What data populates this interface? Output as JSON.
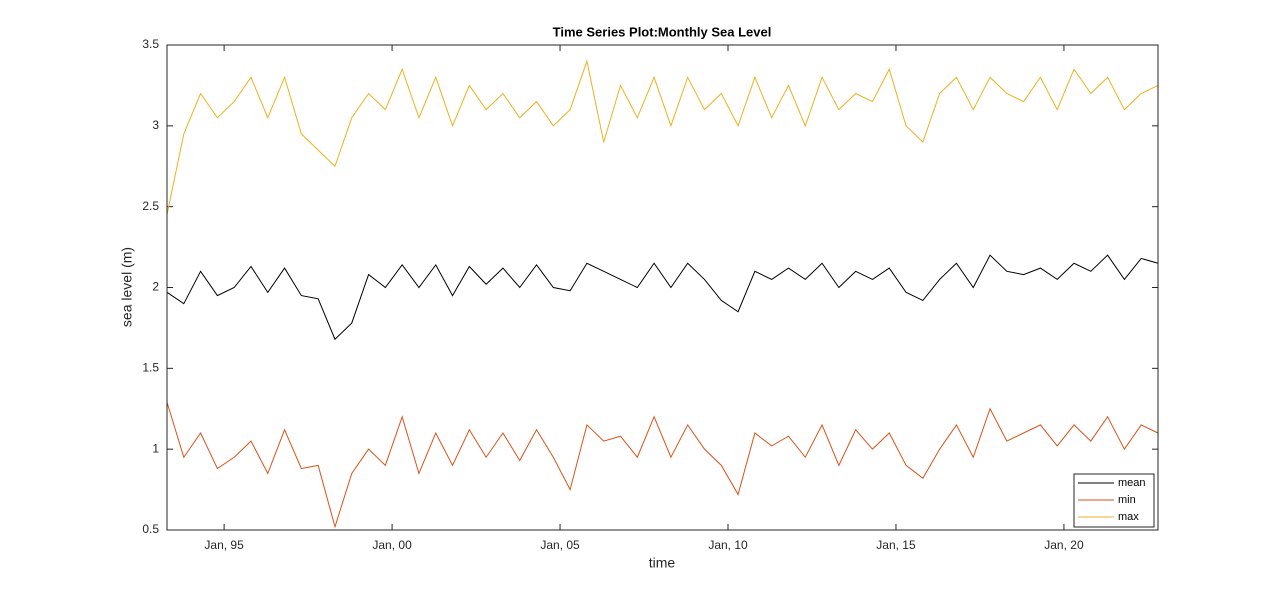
{
  "chart_data": {
    "type": "line",
    "title": "Time Series Plot:Monthly Sea Level",
    "xlabel": "time",
    "ylabel": "sea level (m)",
    "x": [
      1993.3,
      1993.8,
      1994.3,
      1994.8,
      1995.3,
      1995.8,
      1996.3,
      1996.8,
      1997.3,
      1997.8,
      1998.3,
      1998.8,
      1999.3,
      1999.8,
      2000.3,
      2000.8,
      2001.3,
      2001.8,
      2002.3,
      2002.8,
      2003.3,
      2003.8,
      2004.3,
      2004.8,
      2005.3,
      2005.8,
      2006.3,
      2006.8,
      2007.3,
      2007.8,
      2008.3,
      2008.8,
      2009.3,
      2009.8,
      2010.3,
      2010.8,
      2011.3,
      2011.8,
      2012.3,
      2012.8,
      2013.3,
      2013.8,
      2014.3,
      2014.8,
      2015.3,
      2015.8,
      2016.3,
      2016.8,
      2017.3,
      2017.8,
      2018.3,
      2018.8,
      2019.3,
      2019.8,
      2020.3,
      2020.8,
      2021.3,
      2021.8,
      2022.3,
      2022.8
    ],
    "series": [
      {
        "name": "mean",
        "color": "#000000",
        "values": [
          1.97,
          1.9,
          2.1,
          1.95,
          2.0,
          2.13,
          1.97,
          2.12,
          1.95,
          1.93,
          1.68,
          1.78,
          2.08,
          2.0,
          2.14,
          2.0,
          2.14,
          1.95,
          2.13,
          2.02,
          2.12,
          2.0,
          2.14,
          2.0,
          1.98,
          2.15,
          2.1,
          2.05,
          2.0,
          2.15,
          2.0,
          2.15,
          2.05,
          1.92,
          1.85,
          2.1,
          2.05,
          2.12,
          2.05,
          2.15,
          2.0,
          2.1,
          2.05,
          2.12,
          1.97,
          1.92,
          2.05,
          2.15,
          2.0,
          2.2,
          2.1,
          2.08,
          2.12,
          2.05,
          2.15,
          2.1,
          2.2,
          2.05,
          2.18,
          2.15
        ]
      },
      {
        "name": "min",
        "color": "#d95319",
        "values": [
          1.29,
          0.95,
          1.1,
          0.88,
          0.95,
          1.05,
          0.85,
          1.12,
          0.88,
          0.9,
          0.52,
          0.85,
          1.0,
          0.9,
          1.2,
          0.85,
          1.1,
          0.9,
          1.12,
          0.95,
          1.1,
          0.93,
          1.12,
          0.95,
          0.75,
          1.15,
          1.05,
          1.08,
          0.95,
          1.2,
          0.95,
          1.15,
          1.0,
          0.9,
          0.72,
          1.1,
          1.02,
          1.08,
          0.95,
          1.15,
          0.9,
          1.12,
          1.0,
          1.1,
          0.9,
          0.82,
          1.0,
          1.15,
          0.95,
          1.25,
          1.05,
          1.1,
          1.15,
          1.02,
          1.15,
          1.05,
          1.2,
          1.0,
          1.15,
          1.1
        ]
      },
      {
        "name": "max",
        "color": "#edb120",
        "values": [
          2.45,
          2.95,
          3.2,
          3.05,
          3.15,
          3.3,
          3.05,
          3.3,
          2.95,
          2.85,
          2.75,
          3.05,
          3.2,
          3.1,
          3.35,
          3.05,
          3.3,
          3.0,
          3.25,
          3.1,
          3.2,
          3.05,
          3.15,
          3.0,
          3.1,
          3.4,
          2.9,
          3.25,
          3.05,
          3.3,
          3.0,
          3.3,
          3.1,
          3.2,
          3.0,
          3.3,
          3.05,
          3.25,
          3.0,
          3.3,
          3.1,
          3.2,
          3.15,
          3.35,
          3.0,
          2.9,
          3.2,
          3.3,
          3.1,
          3.3,
          3.2,
          3.15,
          3.3,
          3.1,
          3.35,
          3.2,
          3.3,
          3.1,
          3.2,
          3.25
        ]
      }
    ],
    "xlim": [
      1993.3,
      2022.8
    ],
    "xticks": [
      {
        "value": 1995,
        "label": "Jan, 95"
      },
      {
        "value": 2000,
        "label": "Jan, 00"
      },
      {
        "value": 2005,
        "label": "Jan, 05"
      },
      {
        "value": 2010,
        "label": "Jan, 10"
      },
      {
        "value": 2015,
        "label": "Jan, 15"
      },
      {
        "value": 2020,
        "label": "Jan, 20"
      }
    ],
    "ylim": [
      0.5,
      3.5
    ],
    "yticks": [
      0.5,
      1,
      1.5,
      2,
      2.5,
      3,
      3.5
    ],
    "grid": false,
    "legend": "southeast"
  }
}
